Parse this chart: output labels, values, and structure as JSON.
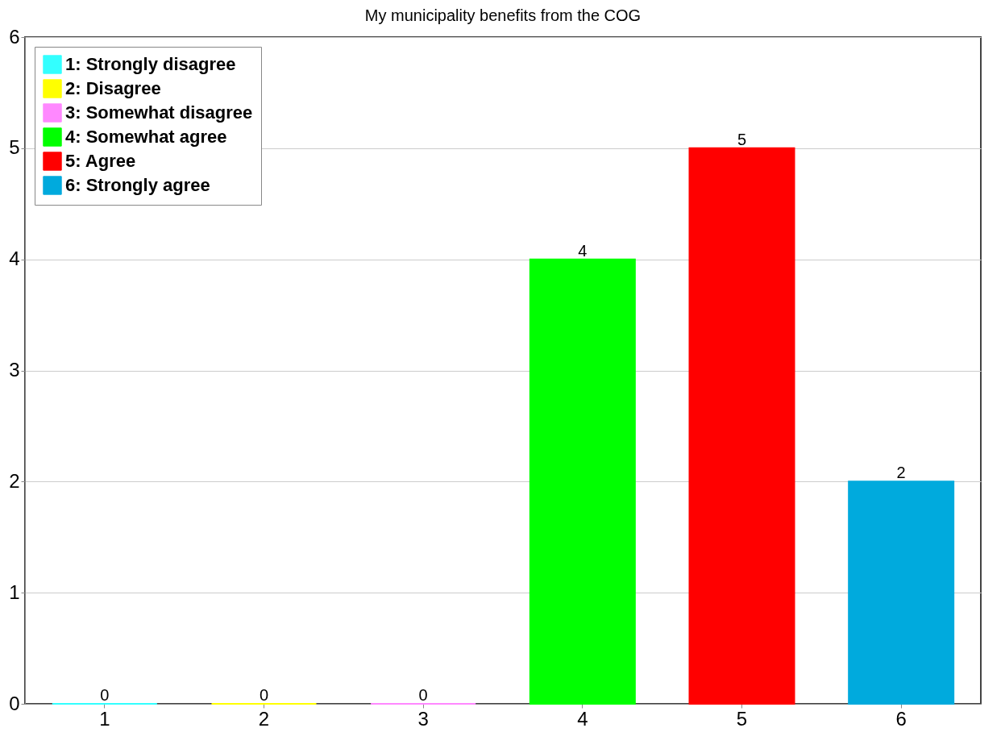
{
  "chart_data": {
    "type": "bar",
    "title": "My municipality benefits from the COG",
    "categories": [
      "1",
      "2",
      "3",
      "4",
      "5",
      "6"
    ],
    "series": [
      {
        "name": "1: Strongly disagree",
        "color": "#33ffff",
        "values": [
          0,
          null,
          null,
          null,
          null,
          null
        ]
      },
      {
        "name": "2: Disagree",
        "color": "#ffff00",
        "values": [
          null,
          0,
          null,
          null,
          null,
          null
        ]
      },
      {
        "name": "3: Somewhat disagree",
        "color": "#ff88ff",
        "values": [
          null,
          null,
          0,
          null,
          null,
          null
        ]
      },
      {
        "name": "4: Somewhat agree",
        "color": "#00ff00",
        "values": [
          null,
          null,
          null,
          4,
          null,
          null
        ]
      },
      {
        "name": "5: Agree",
        "color": "#ff0000",
        "values": [
          null,
          null,
          null,
          null,
          5,
          null
        ]
      },
      {
        "name": "6: Strongly agree",
        "color": "#00aadd",
        "values": [
          null,
          null,
          null,
          null,
          null,
          2
        ]
      }
    ],
    "ylim": [
      0,
      6
    ],
    "yticks": [
      0,
      1,
      2,
      3,
      4,
      5,
      6
    ],
    "grid": "y",
    "legend": "top left",
    "data_labels": true
  }
}
